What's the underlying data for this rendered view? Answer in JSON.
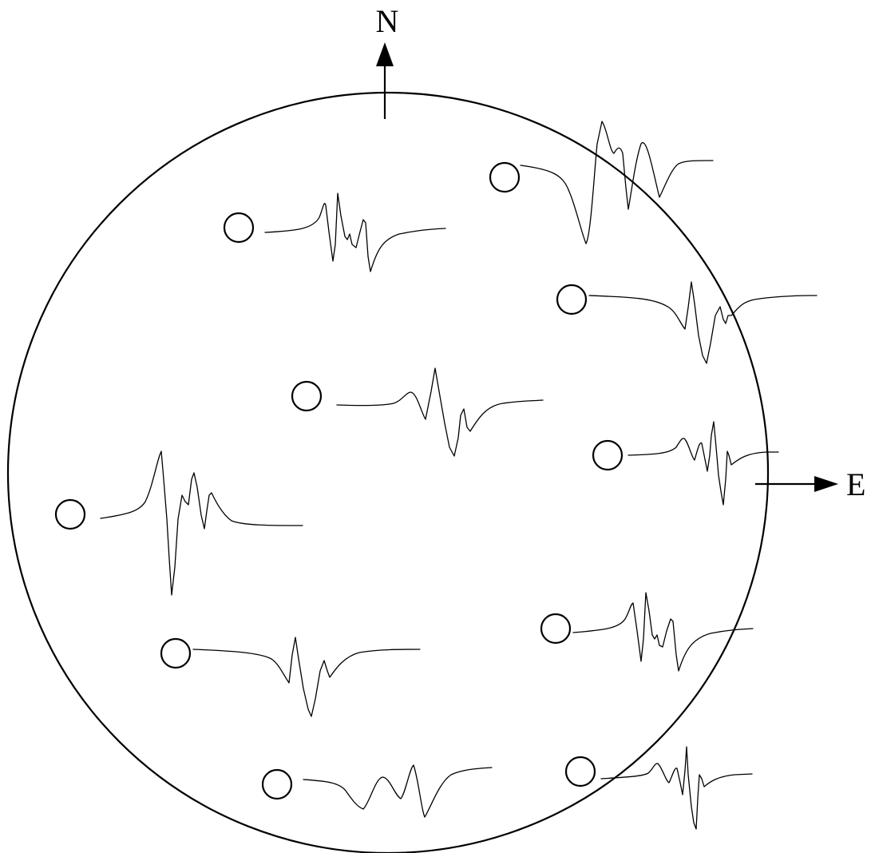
{
  "compass": {
    "north_label": "N",
    "east_label": "E"
  },
  "colors": {
    "ink": "#000000",
    "background": "#ffffff"
  },
  "icons": {
    "station": "hollow-circle-station-icon",
    "trace": "seismic-waveform-trace-icon"
  }
}
